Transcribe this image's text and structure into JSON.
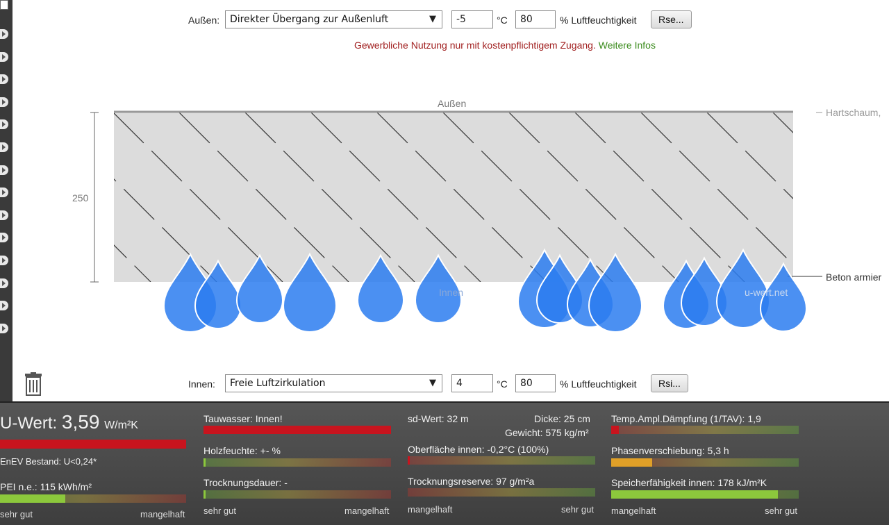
{
  "outside": {
    "label": "Außen:",
    "transition": "Direkter Übergang zur Außenluft",
    "temperature": "-5",
    "temp_unit": "°C",
    "humidity": "80",
    "humidity_unit": "% Luftfeuchtigkeit",
    "button": "Rse..."
  },
  "notice": {
    "text": "Gewerbliche Nutzung nur mit kostenpflichtigem Zugang.",
    "link": "Weitere Infos"
  },
  "diagram": {
    "top_label": "Außen",
    "bottom_label": "Innen",
    "watermark": "u-wert.net",
    "thickness": "250",
    "layer_top": "Hartschaum,",
    "layer_main": "Beton armier"
  },
  "inside": {
    "label": "Innen:",
    "transition": "Freie Luftzirkulation",
    "temperature": "4",
    "temp_unit": "°C",
    "humidity": "80",
    "humidity_unit": "% Luftfeuchtigkeit",
    "button": "Rsi..."
  },
  "results": {
    "uwert_label": "U-Wert:",
    "uwert_value": "3,59",
    "uwert_unit": "W/m²K",
    "enev": "EnEV Bestand: U<0,24*",
    "pei": "PEI n.e.: 115 kWh/m²",
    "scale_left_1": "sehr gut",
    "scale_right_1": "mangelhaft",
    "tauwasser": "Tauwasser: Innen!",
    "holzfeuchte": "Holzfeuchte: +- %",
    "trocknungsdauer": "Trocknungsdauer: -",
    "scale_left_2": "sehr gut",
    "scale_right_2": "mangelhaft",
    "sd_wert": "sd-Wert: 32 m",
    "dicke": "Dicke: 25 cm",
    "gewicht": "Gewicht: 575 kg/m²",
    "oberflaeche": "Oberfläche innen: -0,2°C (100%)",
    "trocknungsreserve": "Trocknungsreserve: 97 g/m²a",
    "scale_left_3": "mangelhaft",
    "scale_right_3": "sehr gut",
    "daempfung": "Temp.Ampl.Dämpfung (1/TAV): 1,9",
    "phasenverschiebung": "Phasenverschiebung: 5,3 h",
    "speicher": "Speicherfähigkeit innen: 178 kJ/m²K",
    "scale_left_4": "mangelhaft",
    "scale_right_4": "sehr gut"
  },
  "levels": {
    "uwert": 1.0,
    "pei": 0.35,
    "tauwasser": 1.0,
    "holzfeuchte": 0.01,
    "trocknungsdauer": 0.01,
    "oberflaeche": 0.01,
    "daempfung": 0.04,
    "phasenverschiebung": 0.22,
    "speicher": 0.89
  },
  "colors": {
    "red": "#c8141e",
    "green": "#8cc83c",
    "orange": "#e0a028",
    "drop": "#2b7df0",
    "hatch": "#dcdcdc"
  }
}
